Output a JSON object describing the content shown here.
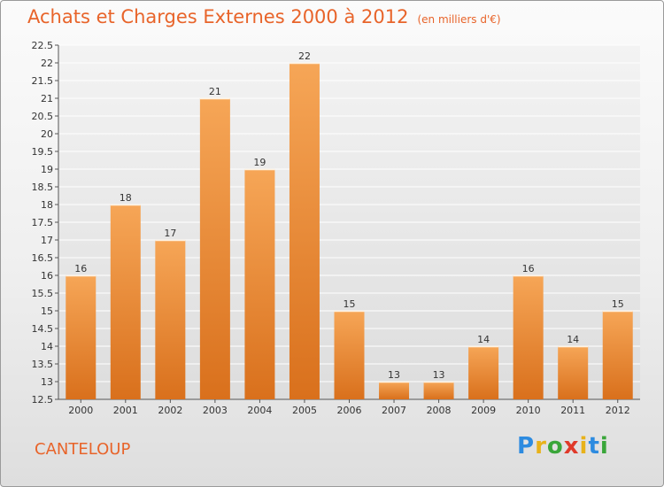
{
  "header": {
    "title": "Achats et Charges Externes 2000 à 2012",
    "unit": "(en milliers d'€)"
  },
  "footer": {
    "commune": "CANTELOUP",
    "logo_letters": [
      "P",
      "r",
      "o",
      "x",
      "i",
      "t",
      "i"
    ],
    "logo_colors": [
      "#2d8be0",
      "#e8b21a",
      "#3aa63a",
      "#e03a2a",
      "#e8b21a",
      "#2d8be0",
      "#3aa63a"
    ]
  },
  "chart_data": {
    "type": "bar",
    "categories": [
      "2000",
      "2001",
      "2002",
      "2003",
      "2004",
      "2005",
      "2006",
      "2007",
      "2008",
      "2009",
      "2010",
      "2011",
      "2012"
    ],
    "values": [
      16,
      18,
      17,
      21,
      19,
      22,
      15,
      13,
      13,
      14,
      16,
      14,
      15
    ],
    "data_labels": [
      "16",
      "18",
      "17",
      "21",
      "19",
      "22",
      "15",
      "13",
      "13",
      "14",
      "16",
      "14",
      "15"
    ],
    "ylim": [
      12.5,
      22.5
    ],
    "yticks": [
      "12.5",
      "13",
      "13.5",
      "14",
      "14.5",
      "15",
      "15.5",
      "16",
      "16.5",
      "17",
      "17.5",
      "18",
      "18.5",
      "19",
      "19.5",
      "20",
      "20.5",
      "21",
      "21.5",
      "22",
      "22.5"
    ],
    "grid": true,
    "bar_color": "#f0903a"
  }
}
